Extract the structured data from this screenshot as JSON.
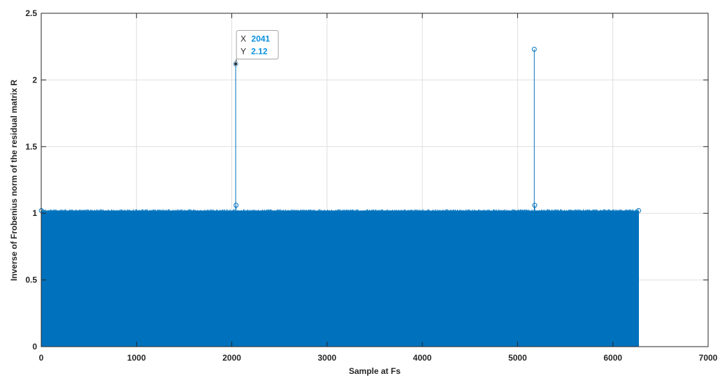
{
  "chart_data": {
    "type": "stem",
    "xlabel": "Sample at Fs",
    "ylabel": "Inverse of Frobenius norm of the residual matrix R",
    "xlim": [
      0,
      7000
    ],
    "ylim": [
      0,
      2.5
    ],
    "xticks": [
      "0",
      "1000",
      "2000",
      "3000",
      "4000",
      "5000",
      "6000",
      "7000"
    ],
    "yticks": [
      "0",
      "0.5",
      "1",
      "1.5",
      "2",
      "2.5"
    ],
    "grid": true,
    "series_color": "#0072BD",
    "series": [
      {
        "dense_band": {
          "x_range": [
            1,
            6270
          ],
          "y_max": 1.03,
          "y_typical": 1.02
        },
        "points": [
          {
            "x": 1,
            "y": 1.02
          },
          {
            "x": 2041,
            "y": 2.12
          },
          {
            "x": 2045,
            "y": 1.06
          },
          {
            "x": 5175,
            "y": 2.23
          },
          {
            "x": 5180,
            "y": 1.06
          },
          {
            "x": 6270,
            "y": 1.02
          }
        ]
      }
    ],
    "datatip": {
      "x_label": "X",
      "x_value": "2041",
      "y_label": "Y",
      "y_value": "2.12",
      "x": 2041,
      "y": 2.12
    }
  }
}
